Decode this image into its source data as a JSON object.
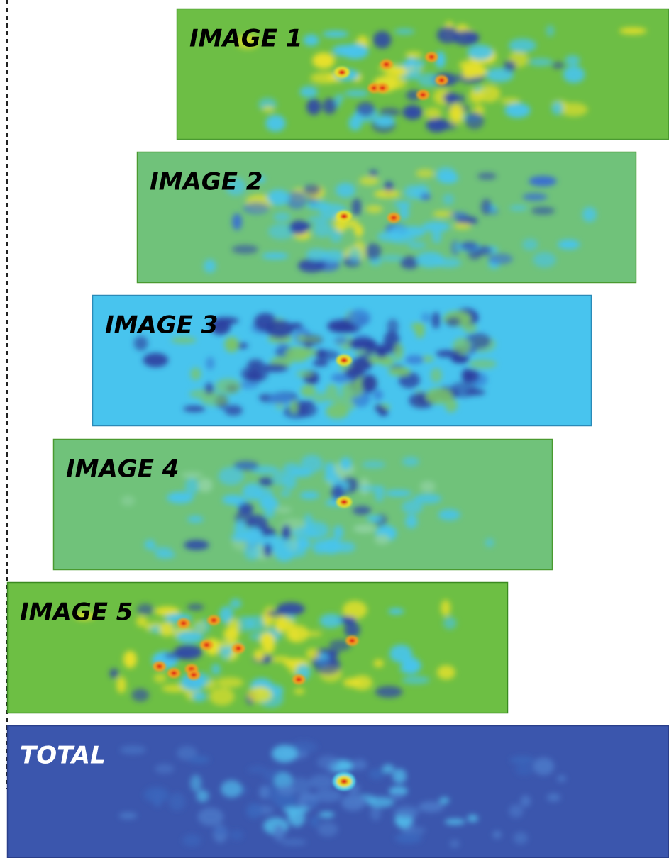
{
  "panels": [
    {
      "label": "IMAGE 1"
    },
    {
      "label": "IMAGE 2"
    },
    {
      "label": "IMAGE 3"
    },
    {
      "label": "IMAGE 4"
    },
    {
      "label": "IMAGE 5"
    },
    {
      "label": "TOTAL"
    }
  ]
}
